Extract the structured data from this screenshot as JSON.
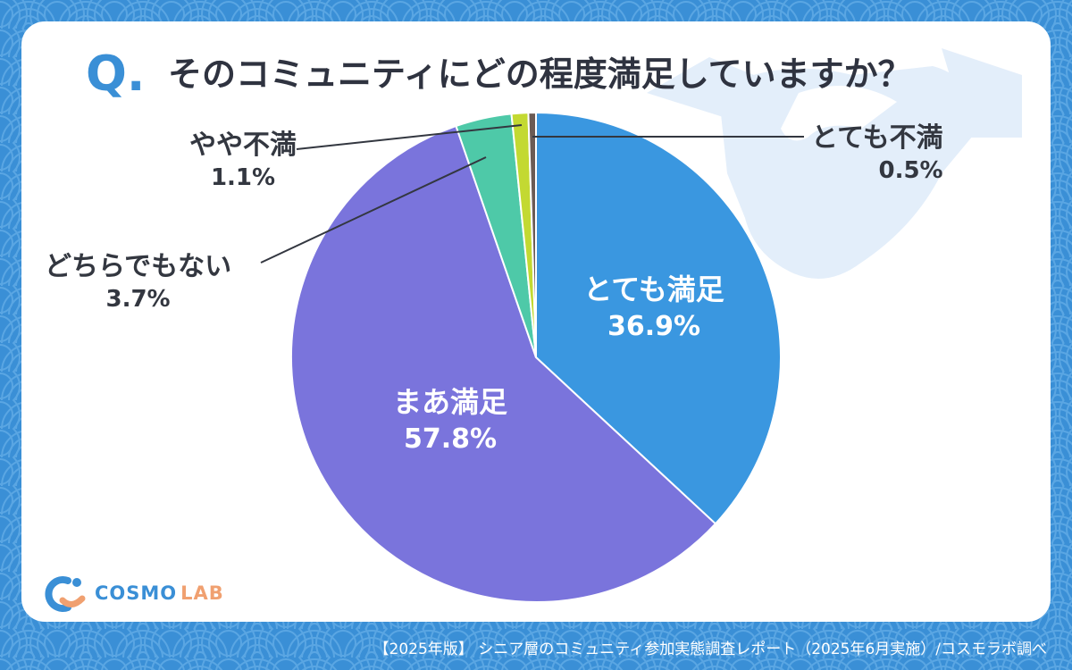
{
  "question": {
    "letter": "Q.",
    "text": "そのコミュニティにどの程度満足していますか？"
  },
  "chart_data": {
    "type": "pie",
    "title": "そのコミュニティにどの程度満足していますか？",
    "slices": [
      {
        "label": "とても満足",
        "value": 36.9,
        "value_text": "36.9%",
        "color": "#3a97e0"
      },
      {
        "label": "まあ満足",
        "value": 57.8,
        "value_text": "57.8%",
        "color": "#7a74dc"
      },
      {
        "label": "どちらでもない",
        "value": 3.7,
        "value_text": "3.7%",
        "color": "#4ec9a8"
      },
      {
        "label": "やや不満",
        "value": 1.1,
        "value_text": "1.1%",
        "color": "#c3d932"
      },
      {
        "label": "とても不満",
        "value": 0.5,
        "value_text": "0.5%",
        "color": "#6b5b55"
      }
    ],
    "start_angle": "12 o'clock",
    "direction": "clockwise"
  },
  "colors": {
    "background": "#3a8fd6",
    "accent": "#3a8fd6",
    "text": "#2f3340"
  },
  "logo": {
    "icon": "cosmo-lab-logo-icon",
    "name_part1": "COSMO",
    "name_part2": "LAB"
  },
  "footer": {
    "text": "【2025年版】 シニア層のコミュニティ参加実態調査レポート（2025年6月実施）/コスモラボ調べ"
  }
}
